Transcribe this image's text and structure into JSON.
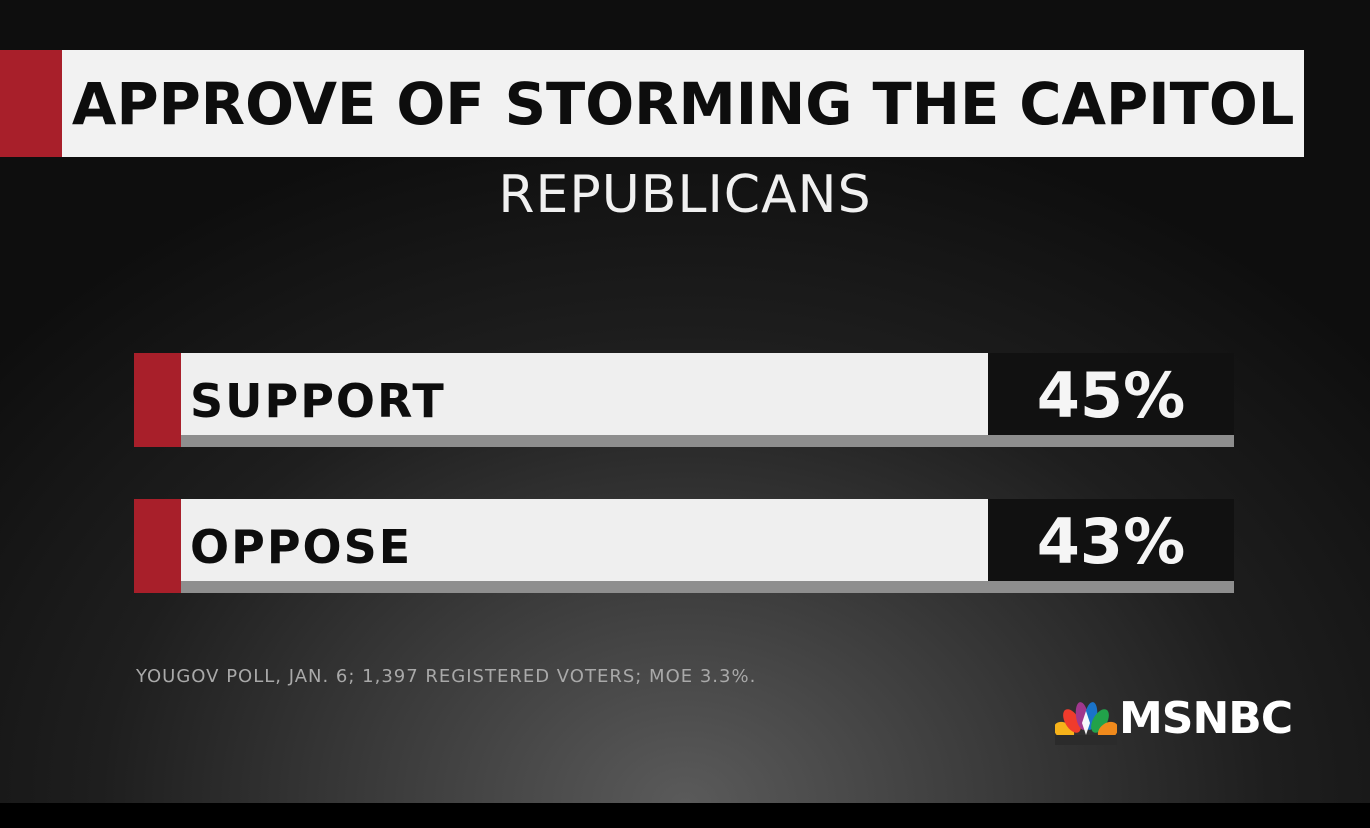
{
  "title": "APPROVE OF STORMING THE CAPITOL",
  "subtitle": "REPUBLICANS",
  "chart_data": {
    "type": "bar",
    "categories": [
      "SUPPORT",
      "OPPOSE"
    ],
    "values": [
      45,
      43
    ],
    "value_labels": [
      "45%",
      "43%"
    ],
    "title": "APPROVE OF STORMING THE CAPITOL",
    "subtitle": "REPUBLICANS",
    "xlabel": "",
    "ylabel": "",
    "grid": false
  },
  "source": "YOUGOV POLL, JAN. 6; 1,397 REGISTERED VOTERS; MOE 3.3%.",
  "logo": {
    "text": "MSNBC",
    "icon": "nbc-peacock-icon"
  },
  "colors": {
    "accent": "#a81f2a",
    "bar": "#efefef",
    "value_box": "#111111",
    "shadow": "#8e8e8e"
  }
}
